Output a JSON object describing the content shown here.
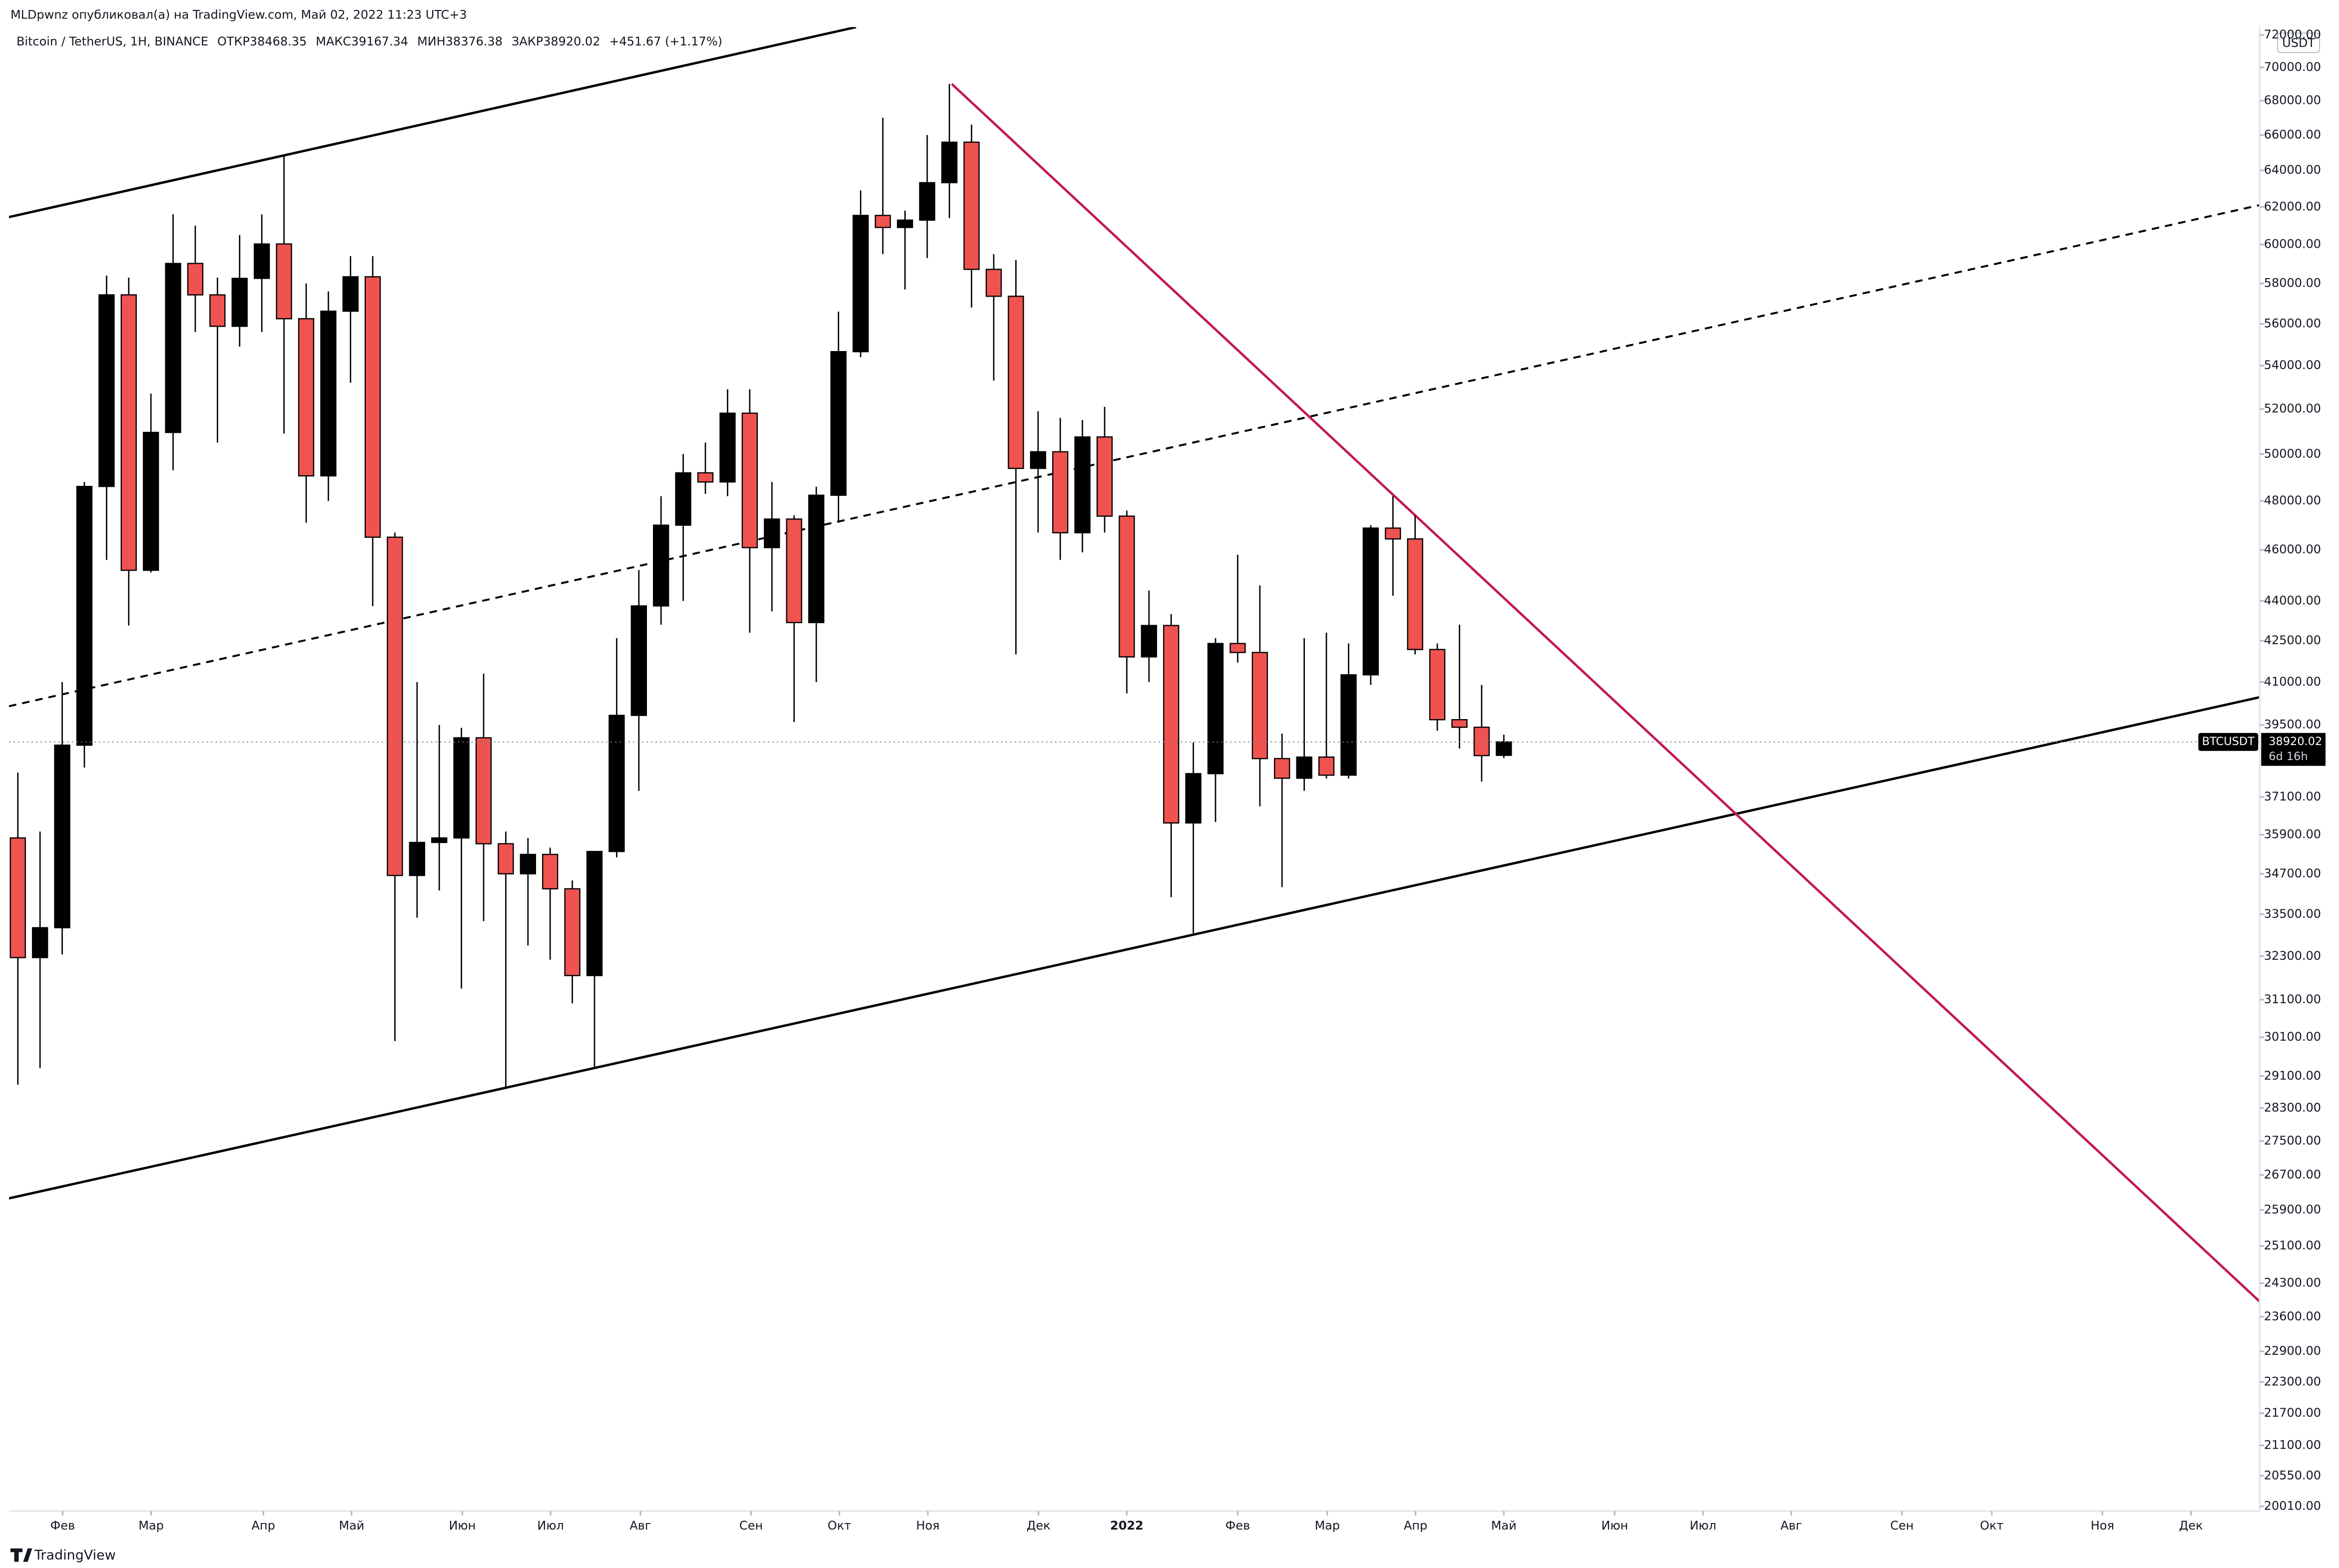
{
  "chart_data": {
    "type": "candlestick",
    "publisher_note": "MLDpwnz опубликовал(а) на TradingView.com, Май 02, 2022 11:23 UTC+3",
    "title": "Bitcoin / TetherUS, 1H, BINANCE",
    "ohlc_labels": [
      "ОТКР",
      "МАКС",
      "МИН",
      "ЗАКР"
    ],
    "change": "+451.67 (+1.17%)",
    "currency": "USDT",
    "symbol": "BTCUSDT",
    "countdown": "6d 16h",
    "brand": "TradingView",
    "up_color": "#000000",
    "down_color": "#ef5350",
    "log_scale": true,
    "grid": false,
    "x": [
      0,
      1,
      2,
      3,
      4,
      5,
      6,
      7,
      8,
      9,
      10,
      11,
      12,
      13,
      14,
      15,
      16,
      17,
      18,
      19,
      20,
      21,
      22,
      23,
      24,
      25,
      26,
      27,
      28,
      29,
      30,
      31,
      32,
      33,
      34,
      35,
      36,
      37,
      38,
      39,
      40,
      41,
      42,
      43,
      44,
      45,
      46,
      47,
      48,
      49,
      50,
      51,
      52,
      53,
      54,
      55,
      56,
      57,
      58,
      59,
      60,
      61,
      62,
      63,
      64,
      65,
      66,
      67
    ],
    "open": [
      35800,
      32260,
      33110,
      38810,
      48610,
      57430,
      45190,
      50950,
      59020,
      57430,
      55880,
      58260,
      60030,
      56250,
      49060,
      56620,
      58340,
      46510,
      34650,
      35660,
      35800,
      39060,
      35620,
      34700,
      35290,
      34250,
      31760,
      35380,
      39830,
      43810,
      47000,
      49190,
      48800,
      51810,
      46090,
      47250,
      43180,
      48240,
      54660,
      61540,
      60900,
      61290,
      63320,
      65590,
      58720,
      57360,
      49380,
      50100,
      46690,
      50750,
      47370,
      41910,
      43070,
      36270,
      37860,
      42400,
      42070,
      38360,
      37710,
      38410,
      37810,
      41260,
      46880,
      46440,
      42180,
      39680,
      39420,
      38468.35
    ],
    "high": [
      37900,
      36000,
      41000,
      48800,
      58400,
      58300,
      52700,
      61600,
      61000,
      58300,
      60500,
      61600,
      64800,
      58000,
      57600,
      59400,
      59400,
      46700,
      41000,
      39500,
      39400,
      41300,
      36000,
      35800,
      35500,
      34500,
      35400,
      42600,
      45200,
      48200,
      50000,
      50500,
      52900,
      52900,
      48800,
      47400,
      48600,
      56600,
      62900,
      67000,
      61800,
      66000,
      69000,
      66600,
      59500,
      59200,
      51900,
      51600,
      51500,
      52100,
      47600,
      44400,
      43500,
      38900,
      42600,
      45800,
      44600,
      39200,
      42600,
      42800,
      42400,
      47000,
      48200,
      47400,
      42400,
      43100,
      40900,
      39167.34
    ],
    "low": [
      28880,
      29300,
      32350,
      38060,
      45600,
      43070,
      45100,
      49300,
      55600,
      50500,
      54900,
      55600,
      50900,
      47100,
      48000,
      53200,
      43800,
      30000,
      33400,
      34200,
      31400,
      33300,
      28800,
      32600,
      32200,
      31000,
      29300,
      35200,
      37300,
      43100,
      44000,
      48300,
      48200,
      42800,
      43600,
      39600,
      41000,
      47100,
      54400,
      59500,
      57700,
      59300,
      61400,
      56800,
      53300,
      42000,
      46700,
      45600,
      45900,
      46700,
      40600,
      41000,
      34000,
      32950,
      36300,
      41700,
      36800,
      34300,
      37300,
      37700,
      37700,
      40900,
      44200,
      42000,
      39300,
      38700,
      37600,
      38376.38
    ],
    "close": [
      32260,
      33110,
      38810,
      48610,
      57430,
      45190,
      50950,
      59020,
      57430,
      55880,
      58260,
      60030,
      56250,
      49060,
      56620,
      58340,
      46510,
      34650,
      35660,
      35800,
      39060,
      35620,
      34700,
      35290,
      34250,
      31760,
      35380,
      39830,
      43810,
      47000,
      49190,
      48800,
      51810,
      46090,
      47250,
      43180,
      48240,
      54660,
      61540,
      60900,
      61290,
      63320,
      65590,
      58720,
      57360,
      49380,
      50100,
      46690,
      50750,
      47370,
      41910,
      43070,
      36270,
      37860,
      42400,
      42070,
      38360,
      37710,
      38410,
      37810,
      41260,
      46880,
      46440,
      42180,
      39680,
      39420,
      38460,
      38920.02
    ],
    "xlim": [
      -0.4,
      101.08
    ],
    "xticks": [
      {
        "value": 2.02,
        "label": "Фев"
      },
      {
        "value": 6.01,
        "label": "Мар"
      },
      {
        "value": 11.07,
        "label": "Апр"
      },
      {
        "value": 15.05,
        "label": "Май"
      },
      {
        "value": 20.04,
        "label": "Июн"
      },
      {
        "value": 24.02,
        "label": "Июл"
      },
      {
        "value": 28.07,
        "label": "Авг"
      },
      {
        "value": 33.06,
        "label": "Сен"
      },
      {
        "value": 37.04,
        "label": "Окт"
      },
      {
        "value": 41.03,
        "label": "Ноя"
      },
      {
        "value": 46.02,
        "label": "Дек"
      },
      {
        "value": 50.0,
        "label": "2022"
      },
      {
        "value": 55.0,
        "label": "Фев"
      },
      {
        "value": 59.04,
        "label": "Мар"
      },
      {
        "value": 63.02,
        "label": "Апр"
      },
      {
        "value": 67.0,
        "label": "Май"
      },
      {
        "value": 72.0,
        "label": "Июн"
      },
      {
        "value": 75.98,
        "label": "Июл"
      },
      {
        "value": 79.96,
        "label": "Авг"
      },
      {
        "value": 84.95,
        "label": "Сен"
      },
      {
        "value": 89.0,
        "label": "Окт"
      },
      {
        "value": 93.99,
        "label": "Ноя"
      },
      {
        "value": 97.98,
        "label": "Дек"
      }
    ],
    "ylim": [
      19930,
      72500
    ],
    "yticks": [
      {
        "value": 72000,
        "label": "72000.00"
      },
      {
        "value": 70000,
        "label": "70000.00"
      },
      {
        "value": 68000,
        "label": "68000.00"
      },
      {
        "value": 66000,
        "label": "66000.00"
      },
      {
        "value": 64000,
        "label": "64000.00"
      },
      {
        "value": 62000,
        "label": "62000.00"
      },
      {
        "value": 60000,
        "label": "60000.00"
      },
      {
        "value": 58000,
        "label": "58000.00"
      },
      {
        "value": 56000,
        "label": "56000.00"
      },
      {
        "value": 54000,
        "label": "54000.00"
      },
      {
        "value": 52000,
        "label": "52000.00"
      },
      {
        "value": 50000,
        "label": "50000.00"
      },
      {
        "value": 48000,
        "label": "48000.00"
      },
      {
        "value": 46000,
        "label": "46000.00"
      },
      {
        "value": 44000,
        "label": "44000.00"
      },
      {
        "value": 42500,
        "label": "42500.00"
      },
      {
        "value": 41000,
        "label": "41000.00"
      },
      {
        "value": 39500,
        "label": "39500.00"
      },
      {
        "value": 37100,
        "label": "37100.00"
      },
      {
        "value": 35900,
        "label": "35900.00"
      },
      {
        "value": 34700,
        "label": "34700.00"
      },
      {
        "value": 33500,
        "label": "33500.00"
      },
      {
        "value": 32300,
        "label": "32300.00"
      },
      {
        "value": 31100,
        "label": "31100.00"
      },
      {
        "value": 30100,
        "label": "30100.00"
      },
      {
        "value": 29100,
        "label": "29100.00"
      },
      {
        "value": 28300,
        "label": "28300.00"
      },
      {
        "value": 27500,
        "label": "27500.00"
      },
      {
        "value": 26700,
        "label": "26700.00"
      },
      {
        "value": 25900,
        "label": "25900.00"
      },
      {
        "value": 25100,
        "label": "25100.00"
      },
      {
        "value": 24300,
        "label": "24300.00"
      },
      {
        "value": 23600,
        "label": "23600.00"
      },
      {
        "value": 22900,
        "label": "22900.00"
      },
      {
        "value": 22300,
        "label": "22300.00"
      },
      {
        "value": 21700,
        "label": "21700.00"
      },
      {
        "value": 21100,
        "label": "21100.00"
      },
      {
        "value": 20550,
        "label": "20550.00"
      },
      {
        "value": 20010,
        "label": "20010.00"
      }
    ]
  }
}
